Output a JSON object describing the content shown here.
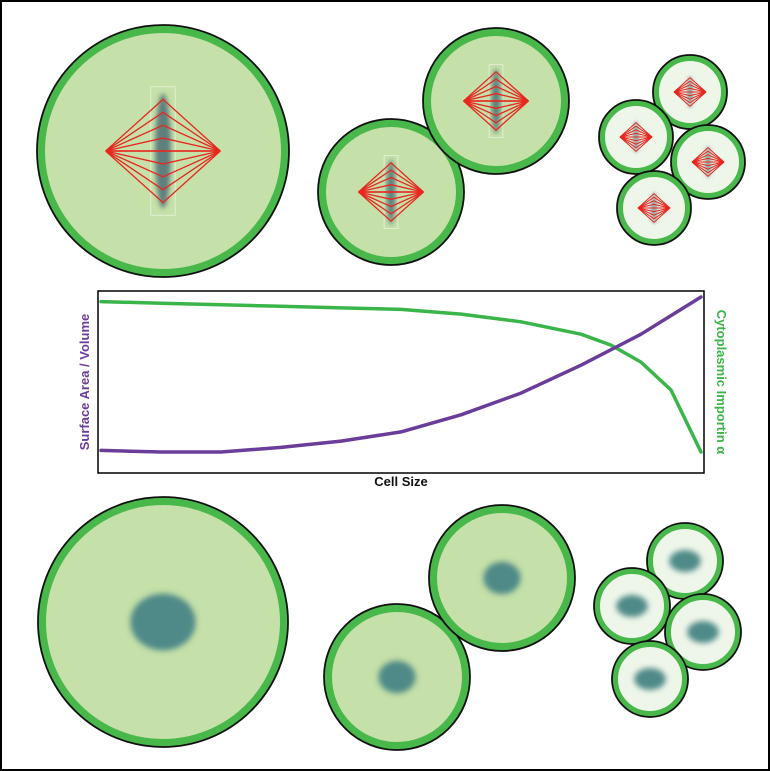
{
  "figure": {
    "labels": {
      "ylabel_left": "Surface Area / Volume",
      "ylabel_right": "Cytoplasmic Importin α",
      "xlabel": "Cell Size"
    }
  },
  "colors": {
    "cell_fill": "#c5e0a8",
    "cell_fill_light": "#eef6e9",
    "membrane": "#48b84a",
    "outline": "#111111",
    "nucleus": "#4f8a88",
    "spindle_line": "#e8261e",
    "chromatin": "#5f7f7e",
    "sa_v_curve": "#6a3d9a",
    "importin_curve": "#3ab54a"
  },
  "chart_data": {
    "type": "line",
    "xlabel": "Cell Size",
    "ylabel": "Surface Area / Volume",
    "y2label": "Cytoplasmic Importin α",
    "grid": false,
    "series": [
      {
        "name": "Surface Area / Volume",
        "color": "#6a3d9a",
        "x": [
          0,
          0.1,
          0.2,
          0.3,
          0.4,
          0.5,
          0.6,
          0.7,
          0.8,
          0.9,
          1.0
        ],
        "y": [
          0.01,
          0.0,
          0.0,
          0.03,
          0.07,
          0.13,
          0.24,
          0.38,
          0.56,
          0.76,
          1.0
        ]
      },
      {
        "name": "Cytoplasmic Importin α",
        "color": "#3ab54a",
        "x": [
          0,
          0.1,
          0.2,
          0.3,
          0.4,
          0.5,
          0.6,
          0.7,
          0.8,
          0.85,
          0.9,
          0.95,
          1.0
        ],
        "y": [
          0.97,
          0.96,
          0.95,
          0.94,
          0.93,
          0.92,
          0.89,
          0.84,
          0.76,
          0.69,
          0.58,
          0.4,
          0.0
        ]
      }
    ]
  }
}
